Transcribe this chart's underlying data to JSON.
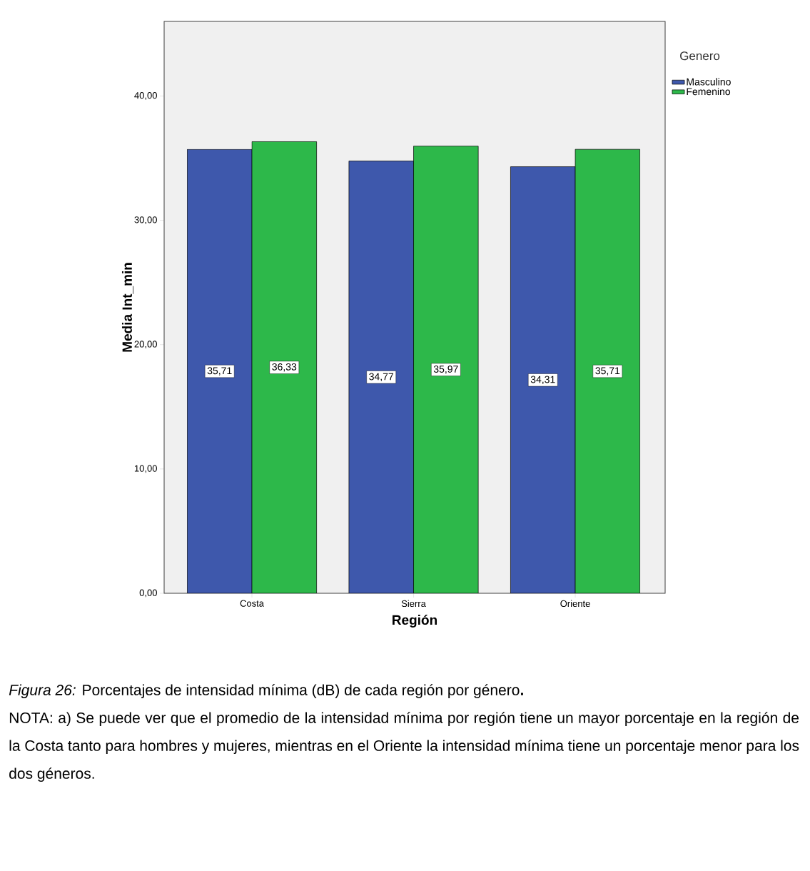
{
  "chart_data": {
    "type": "bar",
    "xlabel": "Región",
    "ylabel": "Media Int_min",
    "legend_title": "Genero",
    "legend": "top right",
    "categories": [
      "Costa",
      "Sierra",
      "Oriente"
    ],
    "series": [
      {
        "name": "Masculino",
        "color": "#3e58ac",
        "values": [
          35.71,
          34.77,
          34.31
        ],
        "value_labels": [
          "35,71",
          "34,77",
          "34,31"
        ]
      },
      {
        "name": "Femenino",
        "color": "#2db84a",
        "values": [
          36.33,
          35.97,
          35.71
        ],
        "value_labels": [
          "36,33",
          "35,97",
          "35,71"
        ]
      }
    ],
    "ylim": [
      0,
      46
    ],
    "yticks": [
      {
        "value": 0,
        "label": "0,00"
      },
      {
        "value": 10,
        "label": "10,00"
      },
      {
        "value": 20,
        "label": "20,00"
      },
      {
        "value": 30,
        "label": "30,00"
      },
      {
        "value": 40,
        "label": "40,00"
      }
    ],
    "annotations": [
      "*Figura 26:* Porcentajes de intensidad mínima (dB) de cada región por género**.**",
      "NOTA: a) Se puede ver que el promedio de la intensidad mínima por región tiene un mayor porcentaje en la región de la Costa tanto para hombres y mujeres, mientras en el Oriente la intensidad mínima tiene un porcentaje menor para los dos  géneros."
    ]
  }
}
